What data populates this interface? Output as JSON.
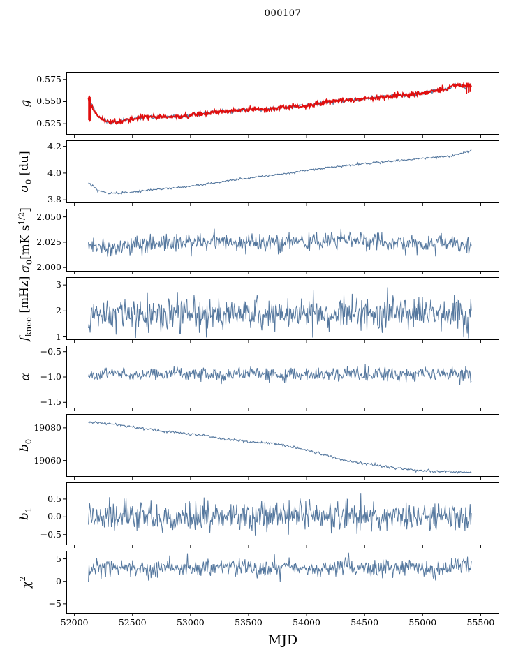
{
  "title": "000107",
  "xlabel": "MJD",
  "colors": {
    "line": "#54779e",
    "overlay": "#e10e0e",
    "axis": "#000000",
    "background": "#ffffff"
  },
  "chart_data": {
    "type": "line",
    "title": "000107",
    "x_axis": {
      "label": "MJD",
      "xlim": [
        51930,
        55660
      ],
      "data_range": [
        52120,
        55420
      ],
      "ticks": [
        {
          "v": 52000,
          "l": "52000"
        },
        {
          "v": 52500,
          "l": "52500"
        },
        {
          "v": 53000,
          "l": "53000"
        },
        {
          "v": 53500,
          "l": "53500"
        },
        {
          "v": 54000,
          "l": "54000"
        },
        {
          "v": 54500,
          "l": "54500"
        },
        {
          "v": 55000,
          "l": "55000"
        },
        {
          "v": 55500,
          "l": "55500"
        }
      ]
    },
    "panels": [
      {
        "name": "g",
        "ylabel": [
          {
            "t": "g",
            "i": true
          }
        ],
        "ylim": [
          0.5125,
          0.5835
        ],
        "yticks": [
          {
            "v": 0.525,
            "l": "0.525"
          },
          {
            "v": 0.55,
            "l": "0.550"
          },
          {
            "v": 0.575,
            "l": "0.575"
          }
        ],
        "series": [
          {
            "color": "line",
            "width": 1.1,
            "points": 500,
            "seed": 3,
            "noise": 0.0012,
            "ax": [
              52120,
              52170,
              52230,
              52300,
              52380,
              52470,
              52560,
              52700,
              52850,
              53000,
              53120,
              53250,
              53400,
              53500,
              53620,
              53750,
              53880,
              54000,
              54120,
              54250,
              54380,
              54500,
              54620,
              54750,
              54880,
              55000,
              55120,
              55220,
              55300,
              55360,
              55420
            ],
            "ay": [
              0.5525,
              0.5395,
              0.5305,
              0.5268,
              0.5272,
              0.53,
              0.5322,
              0.5325,
              0.533,
              0.5342,
              0.5368,
              0.5385,
              0.5398,
              0.5415,
              0.5408,
              0.5428,
              0.5448,
              0.5455,
              0.5478,
              0.5508,
              0.5512,
              0.5535,
              0.5545,
              0.5562,
              0.557,
              0.5598,
              0.5625,
              0.5648,
              0.5695,
              0.5668,
              0.5688
            ]
          },
          {
            "color": "overlay",
            "width": 2,
            "points": 600,
            "seed": 5,
            "noise": 0.0014,
            "ax": [
              52120,
              52170,
              52230,
              52300,
              52380,
              52470,
              52560,
              52700,
              52850,
              53000,
              53120,
              53250,
              53400,
              53500,
              53620,
              53750,
              53880,
              54000,
              54120,
              54250,
              54380,
              54500,
              54620,
              54750,
              54880,
              55000,
              55120,
              55220,
              55300,
              55360,
              55420
            ],
            "ay": [
              0.5525,
              0.5395,
              0.5305,
              0.5268,
              0.5272,
              0.53,
              0.5322,
              0.5325,
              0.533,
              0.5342,
              0.5368,
              0.5385,
              0.5398,
              0.5415,
              0.5408,
              0.5428,
              0.5448,
              0.5455,
              0.5478,
              0.5508,
              0.5512,
              0.5535,
              0.5545,
              0.5562,
              0.557,
              0.5598,
              0.5625,
              0.5648,
              0.5695,
              0.5668,
              0.5688
            ],
            "spikes": [
              [
                52124,
                0.529,
                0.5555
              ],
              [
                52129,
                0.5272,
                0.5568
              ],
              [
                52134,
                0.5278,
                0.5552
              ],
              [
                52140,
                0.5295,
                0.5528
              ],
              [
                55378,
                0.5588,
                0.57
              ],
              [
                55396,
                0.5598,
                0.5712
              ],
              [
                55410,
                0.5608,
                0.5698
              ]
            ]
          }
        ]
      },
      {
        "name": "sigma0-du",
        "ylabel": [
          {
            "t": "σ",
            "i": true
          },
          {
            "t": "0",
            "sub": true
          },
          {
            "t": " [du]"
          }
        ],
        "ylim": [
          3.775,
          4.245
        ],
        "yticks": [
          {
            "v": 3.8,
            "l": "3.8"
          },
          {
            "v": 4.0,
            "l": "4.0"
          },
          {
            "v": 4.2,
            "l": "4.2"
          }
        ],
        "series": [
          {
            "color": "line",
            "width": 1.1,
            "points": 450,
            "seed": 7,
            "noise": 0.004,
            "ax": [
              52120,
              52200,
              52300,
              52450,
              52600,
              52800,
              53000,
              53200,
              53400,
              53600,
              53800,
              54000,
              54200,
              54400,
              54600,
              54800,
              55000,
              55120,
              55250,
              55420
            ],
            "ay": [
              3.93,
              3.868,
              3.848,
              3.852,
              3.868,
              3.886,
              3.902,
              3.928,
              3.952,
              3.976,
              3.992,
              4.022,
              4.042,
              4.062,
              4.08,
              4.094,
              4.112,
              4.118,
              4.128,
              4.168
            ]
          }
        ]
      },
      {
        "name": "sigma0-mks",
        "ylabel": [
          {
            "t": "σ",
            "i": true
          },
          {
            "t": "0",
            "sub": true
          },
          {
            "t": "[mK s"
          },
          {
            "t": "1/2",
            "sup": true
          },
          {
            "t": "]"
          }
        ],
        "ylim": [
          1.996,
          2.058
        ],
        "yticks": [
          {
            "v": 2.0,
            "l": "2.000"
          },
          {
            "v": 2.025,
            "l": "2.025"
          },
          {
            "v": 2.05,
            "l": "2.050"
          }
        ],
        "series": [
          {
            "color": "line",
            "width": 1,
            "points": 600,
            "seed": 11,
            "noise": 0.0045,
            "ax": [
              52120,
              52400,
              52800,
              53200,
              53600,
              54000,
              54400,
              54800,
              55200,
              55420
            ],
            "ay": [
              2.022,
              2.021,
              2.024,
              2.026,
              2.024,
              2.025,
              2.027,
              2.024,
              2.025,
              2.021
            ]
          }
        ]
      },
      {
        "name": "fknee",
        "ylabel": [
          {
            "t": "f",
            "i": true
          },
          {
            "t": "knee",
            "sub": true
          },
          {
            "t": " [mHz]"
          }
        ],
        "ylim": [
          0.88,
          3.3
        ],
        "yticks": [
          {
            "v": 1,
            "l": "1"
          },
          {
            "v": 2,
            "l": "2"
          },
          {
            "v": 3,
            "l": "3"
          }
        ],
        "series": [
          {
            "color": "line",
            "width": 1,
            "points": 650,
            "seed": 13,
            "noise": 0.32,
            "ax": [
              52120,
              53000,
              54000,
              55420
            ],
            "ay": [
              1.86,
              1.92,
              1.86,
              1.9
            ]
          }
        ]
      },
      {
        "name": "alpha",
        "ylabel": [
          {
            "t": "α",
            "i": true
          }
        ],
        "ylim": [
          -1.62,
          -0.38
        ],
        "yticks": [
          {
            "v": -1.5,
            "l": "−1.5"
          },
          {
            "v": -1.0,
            "l": "−1.0"
          },
          {
            "v": -0.5,
            "l": "−0.5"
          }
        ],
        "series": [
          {
            "color": "line",
            "width": 1,
            "points": 600,
            "seed": 17,
            "noise": 0.065,
            "ax": [
              52120,
              55420
            ],
            "ay": [
              -0.95,
              -0.94
            ]
          }
        ]
      },
      {
        "name": "b0",
        "ylabel": [
          {
            "t": "b",
            "i": true
          },
          {
            "t": "0",
            "sub": true
          }
        ],
        "ylim": [
          19050,
          19088.5
        ],
        "yticks": [
          {
            "v": 19060,
            "l": "19060"
          },
          {
            "v": 19080,
            "l": "19080"
          }
        ],
        "series": [
          {
            "color": "line",
            "width": 1.1,
            "points": 450,
            "seed": 19,
            "noise": 0.4,
            "ax": [
              52120,
              52300,
              52500,
              52700,
              52900,
              53100,
              53300,
              53500,
              53700,
              53900,
              54100,
              54300,
              54500,
              54700,
              54900,
              55100,
              55300,
              55420
            ],
            "ay": [
              19083.5,
              19082.5,
              19080.5,
              19078.5,
              19077.0,
              19075.5,
              19073.0,
              19071.5,
              19070.5,
              19068.0,
              19064.5,
              19060.5,
              19058.0,
              19056.0,
              19054.5,
              19053.5,
              19053.0,
              19052.5
            ]
          }
        ]
      },
      {
        "name": "b1",
        "ylabel": [
          {
            "t": "b",
            "i": true
          },
          {
            "t": "1",
            "sub": true
          }
        ],
        "ylim": [
          -0.8,
          0.97
        ],
        "yticks": [
          {
            "v": -0.5,
            "l": "−0.5"
          },
          {
            "v": 0.0,
            "l": "0.0"
          },
          {
            "v": 0.5,
            "l": "0.5"
          }
        ],
        "series": [
          {
            "color": "line",
            "width": 1,
            "points": 600,
            "seed": 23,
            "noise": 0.21,
            "ax": [
              52120,
              55420
            ],
            "ay": [
              0.02,
              0.0
            ]
          }
        ]
      },
      {
        "name": "chi2",
        "ylabel": [
          {
            "t": "χ",
            "i": true
          },
          {
            "t": "2",
            "sup": true
          }
        ],
        "ylim": [
          -7.2,
          6.8
        ],
        "yticks": [
          {
            "v": -5,
            "l": "−5"
          },
          {
            "v": 0,
            "l": "0"
          },
          {
            "v": 5,
            "l": "5"
          }
        ],
        "series": [
          {
            "color": "line",
            "width": 1,
            "points": 600,
            "seed": 29,
            "noise": 1.0,
            "ax": [
              52120,
              52350,
              52600,
              52850,
              53100,
              53350,
              53600,
              53850,
              54100,
              54350,
              54600,
              54850,
              55100,
              55300,
              55420
            ],
            "ay": [
              2.6,
              3.4,
              2.4,
              3.3,
              2.5,
              3.5,
              2.6,
              3.2,
              2.4,
              3.4,
              2.7,
              3.3,
              2.5,
              3.6,
              3.0
            ]
          }
        ]
      }
    ]
  }
}
